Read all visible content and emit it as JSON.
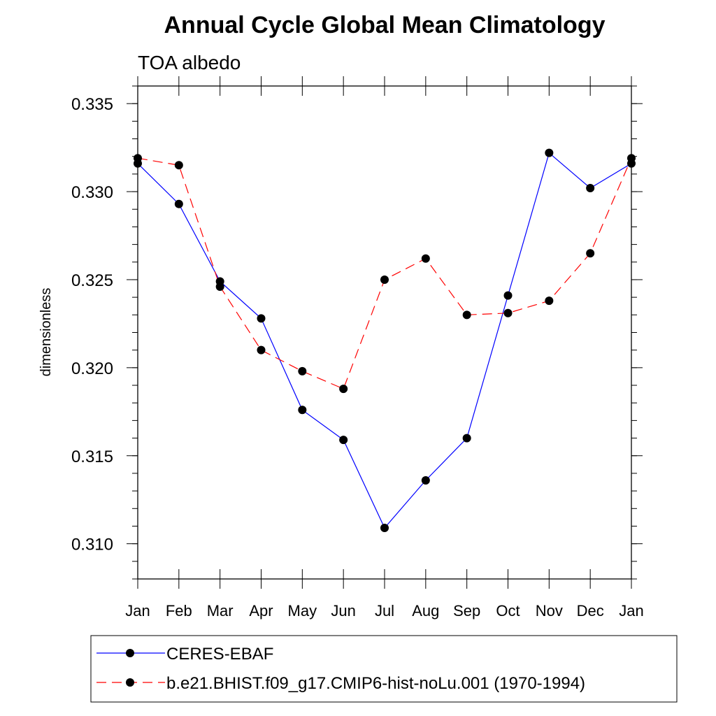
{
  "chart_data": {
    "type": "line",
    "title": "Annual Cycle Global Mean Climatology",
    "subtitle": "TOA albedo",
    "ylabel": "dimensionless",
    "xlabel": "",
    "categories": [
      "Jan",
      "Feb",
      "Mar",
      "Apr",
      "May",
      "Jun",
      "Jul",
      "Aug",
      "Sep",
      "Oct",
      "Nov",
      "Dec",
      "Jan"
    ],
    "ylim": [
      0.308,
      0.336
    ],
    "y_ticks": [
      0.31,
      0.315,
      0.32,
      0.325,
      0.33,
      0.335
    ],
    "y_tick_labels": [
      "0.310",
      "0.315",
      "0.320",
      "0.325",
      "0.330",
      "0.335"
    ],
    "y_minor_step": 0.001,
    "grid": false,
    "legend_placement": "bottom",
    "series": [
      {
        "name": "CERES-EBAF",
        "color": "#0000ff",
        "line_style": "solid",
        "marker": "filled-circle",
        "values": [
          0.3316,
          0.3293,
          0.3249,
          0.3228,
          0.3176,
          0.3159,
          0.3109,
          0.3136,
          0.316,
          0.3241,
          0.3322,
          0.3302,
          0.3316
        ]
      },
      {
        "name": "b.e21.BHIST.f09_g17.CMIP6-hist-noLu.001 (1970-1994)",
        "color": "#ff0000",
        "line_style": "dashed",
        "marker": "filled-circle",
        "values": [
          0.3319,
          0.3315,
          0.3246,
          0.321,
          0.3198,
          0.3188,
          0.325,
          0.3262,
          0.323,
          0.3231,
          0.3238,
          0.3265,
          0.3319
        ]
      }
    ]
  }
}
